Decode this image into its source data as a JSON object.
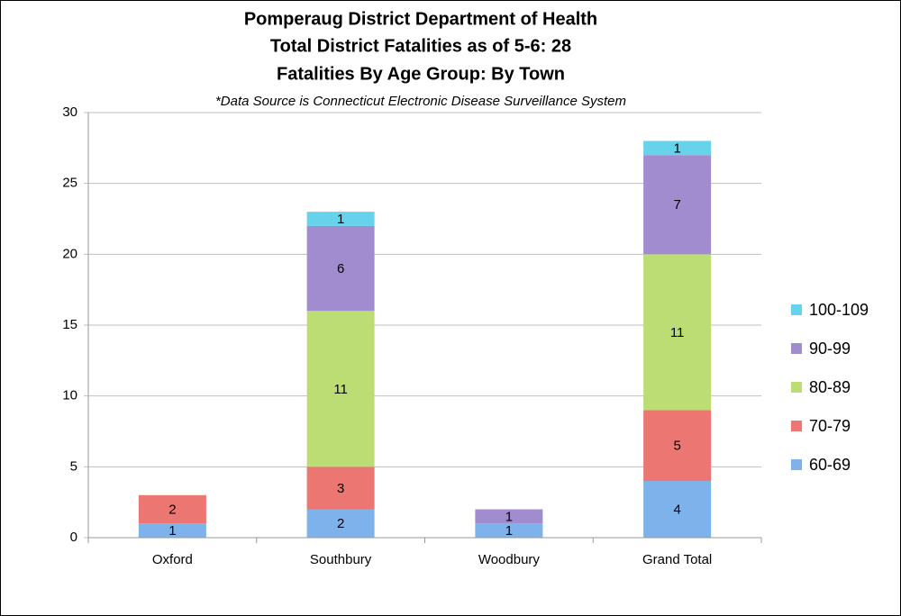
{
  "chart_data": {
    "type": "stacked-bar",
    "title": "Pomperaug District Department of Health",
    "title_line2": "Total District Fatalities as of 5-6: 28",
    "title_line3": "Fatalities By Age Group: By Town",
    "subtitle": "*Data Source is Connecticut Electronic Disease Surveillance System",
    "categories": [
      "Oxford",
      "Southbury",
      "Woodbury",
      "Grand Total"
    ],
    "series": [
      {
        "name": "60-69",
        "color": "#7eb2ea",
        "values": [
          1,
          2,
          1,
          4
        ]
      },
      {
        "name": "70-79",
        "color": "#eb7672",
        "values": [
          2,
          3,
          null,
          5
        ]
      },
      {
        "name": "80-89",
        "color": "#bcdc74",
        "values": [
          null,
          11,
          null,
          11
        ]
      },
      {
        "name": "90-99",
        "color": "#a08cce",
        "values": [
          null,
          6,
          1,
          7
        ]
      },
      {
        "name": "100-109",
        "color": "#66d2ec",
        "values": [
          null,
          1,
          null,
          1
        ]
      }
    ],
    "ylim": [
      0,
      30
    ],
    "yticks": [
      0,
      5,
      10,
      15,
      20,
      25,
      30
    ],
    "grid": true,
    "legend": "right"
  }
}
